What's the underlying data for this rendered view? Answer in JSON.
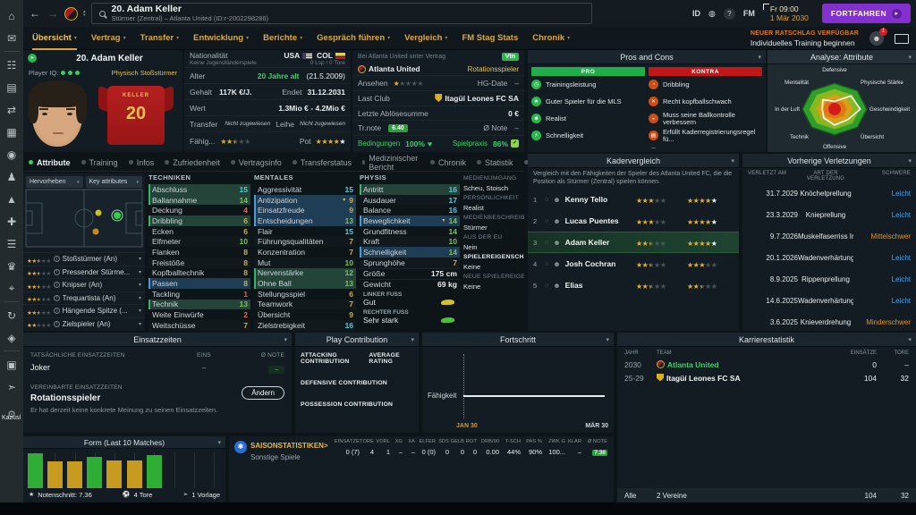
{
  "header": {
    "title": "20. Adam Keller",
    "subtitle": "Stürmer (Zentral) – Atlanta United (ID:r-2002298286)",
    "id_label": "ID",
    "fm_label": "FM",
    "time": "Fr 09:00",
    "date": "1 Mär 2030",
    "continue_label": "FORTFAHREN",
    "advice_title": "NEUER RATSCHLAG VERFÜGBAR",
    "advice_action": "Individuelles Training beginnen",
    "notification_count": "1"
  },
  "nav_tabs": [
    {
      "label": "Übersicht",
      "caret": true,
      "active": true
    },
    {
      "label": "Vertrag",
      "caret": true
    },
    {
      "label": "Transfer",
      "caret": true
    },
    {
      "label": "Entwicklung",
      "caret": true
    },
    {
      "label": "Berichte",
      "caret": true
    },
    {
      "label": "Gespräch führen",
      "caret": true
    },
    {
      "label": "Vergleich",
      "caret": true
    },
    {
      "label": "FM Stag Stats",
      "caret": false
    },
    {
      "label": "Chronik",
      "caret": true
    }
  ],
  "sidebar": {
    "icons": [
      {
        "name": "home",
        "glyph": "⌂"
      },
      {
        "name": "inbox",
        "glyph": "✉"
      },
      {
        "name": "squad-hub",
        "glyph": "☷"
      },
      {
        "name": "tactics",
        "glyph": "▤"
      },
      {
        "name": "transfers",
        "glyph": "⇄"
      },
      {
        "name": "squad",
        "glyph": "▦"
      },
      {
        "name": "club-info",
        "glyph": "◉"
      },
      {
        "name": "staff",
        "glyph": "♟"
      },
      {
        "name": "training",
        "glyph": "▲"
      },
      {
        "name": "medical-centre",
        "glyph": "✚"
      },
      {
        "name": "schedule",
        "glyph": "☰"
      },
      {
        "name": "competitions",
        "glyph": "♛"
      },
      {
        "name": "scouting",
        "glyph": "⌖"
      },
      {
        "name": "recruitment",
        "glyph": "↻"
      },
      {
        "name": "club-vision",
        "glyph": "◈"
      },
      {
        "name": "finances",
        "glyph": "▣"
      },
      {
        "name": "dynamics",
        "glyph": "➣"
      }
    ],
    "gear_glyph": "⚙",
    "footer_label": "Kazusl"
  },
  "player_card": {
    "name": "20. Adam Keller",
    "iq_label": "Player IQ:",
    "iq_dots": 3,
    "role": "Physisch Stoßstürmer",
    "shirt_name": "KELLER",
    "shirt_number": "20"
  },
  "info_personal": {
    "nationality_label": "Nationalität",
    "nationality_sub": "Keine Jugendländerspiele",
    "nat1": "USA",
    "nat2": "COL",
    "caps": "0 Lsp / 0 Tore",
    "age_label": "Alter",
    "age_value": "20 Jahre alt",
    "birthdate": "(21.5.2009)",
    "wage_label": "Gehalt",
    "wage": "117K €/J.",
    "ends_label": "Endet",
    "ends": "31.12.2031",
    "value_label": "Wert",
    "value": "1.3Mio € - 4.2Mio €",
    "transfer_label": "Transfer",
    "transfer_status": "Nicht zugewiesen",
    "loan_label": "Leihe",
    "loan_status": "Nicht zugewiesen",
    "ability_label": "Fähig...",
    "ability_stars": 2.5,
    "pot_label": "Pot",
    "pot_stars_gold": 4,
    "pot_stars_white": 1
  },
  "info_club": {
    "contract_header": "Bei Atlanta United unter Vertrag",
    "contract_badge": "Vtn",
    "club": "Atlanta United",
    "squad_status": "Rotationsspieler",
    "reputation_label": "Ansehen",
    "reputation_stars": 1,
    "hg_label": "HG-Date",
    "hg_value": "–",
    "lastclub_label": "Last Club",
    "lastclub": "Itagüí Leones FC SA",
    "fee_label": "Letzte Ablösesumme",
    "fee": "0 €",
    "trrating_label": "Tr.note",
    "trrating": "6.40",
    "avgrating_label": "Ø Note",
    "avgrating": "–",
    "condition_label": "Bedingungen",
    "condition": "100%",
    "sharpness_label": "Spielpraxis",
    "sharpness": "86%"
  },
  "pros_cons": {
    "title": "Pros and Cons",
    "pro_header": "PRO",
    "con_header": "KONTRA",
    "pros": [
      "Trainingsleistung",
      "Guter Spieler für die MLS",
      "Realist",
      "Schnelligkeit"
    ],
    "cons": [
      "Dribbling",
      "Recht kopfballschwach",
      "Muss seine Ballkontrolle verbessern",
      "Erfüllt Kaderregistrierungsregel fü...",
      "Erfüllt"
    ]
  },
  "radar": {
    "title": "Analyse: Attribute",
    "axes": [
      "Defensive",
      "Physische Stärke",
      "Geschwindigkeit",
      "Übersicht",
      "Offensive",
      "Technik",
      "In der Luft",
      "Mentalität"
    ],
    "values": [
      0.3,
      0.72,
      0.8,
      0.58,
      0.62,
      0.48,
      0.38,
      0.52
    ],
    "ring_colors": [
      "#2f9e2b",
      "#86b821",
      "#d8a018",
      "#df7714"
    ],
    "center_color": "#d41b1b"
  },
  "subtabs": [
    {
      "label": "Attribute",
      "active": true
    },
    {
      "label": "Training"
    },
    {
      "label": "Infos"
    },
    {
      "label": "Zufriedenheit"
    },
    {
      "label": "Vertragsinfo"
    },
    {
      "label": "Transferstatus"
    },
    {
      "label": "Medizinischer Bericht"
    },
    {
      "label": "Chronik"
    },
    {
      "label": "Statistik"
    },
    {
      "label": "Analyse"
    }
  ],
  "highlight_controls": {
    "highlight_label": "Hervorheben",
    "key_label": "Key attributes"
  },
  "positions": [
    {
      "stars": 2.5,
      "label": "Stoßstürmer (An)"
    },
    {
      "stars": 2.5,
      "label": "Pressender Stürme..."
    },
    {
      "stars": 2.5,
      "label": "Knipser (An)"
    },
    {
      "stars": 2.5,
      "label": "Trequartista (An)"
    },
    {
      "stars": 2.5,
      "label": "Hängende Spitze (..."
    },
    {
      "stars": 2,
      "label": "Zielspieler (An)"
    }
  ],
  "attributes": {
    "technical": {
      "title": "TECHNIKEN",
      "rows": [
        {
          "n": "Abschluss",
          "v": "15",
          "c": "teal",
          "hl": "green"
        },
        {
          "n": "Ballannahme",
          "v": "14",
          "c": "green",
          "hl": "green"
        },
        {
          "n": "Deckung",
          "v": "4",
          "c": "red"
        },
        {
          "n": "Dribbling",
          "v": "6",
          "c": "yellow",
          "hl": "green"
        },
        {
          "n": "Ecken",
          "v": "6",
          "c": "yellow"
        },
        {
          "n": "Elfmeter",
          "v": "10",
          "c": "green"
        },
        {
          "n": "Flanken",
          "v": "8",
          "c": "yellow"
        },
        {
          "n": "Freistöße",
          "v": "8",
          "c": "yellow"
        },
        {
          "n": "Kopfballtechnik",
          "v": "8",
          "c": "yellow"
        },
        {
          "n": "Passen",
          "v": "8",
          "c": "yellow",
          "hl": "blue"
        },
        {
          "n": "Tackling",
          "v": "1",
          "c": "red"
        },
        {
          "n": "Technik",
          "v": "13",
          "c": "green",
          "hl": "green"
        },
        {
          "n": "Weite Einwürfe",
          "v": "2",
          "c": "red"
        },
        {
          "n": "Weitschüsse",
          "v": "7",
          "c": "yellow"
        }
      ]
    },
    "mental": {
      "title": "MENTALES",
      "rows": [
        {
          "n": "Aggressivität",
          "v": "15",
          "c": "teal"
        },
        {
          "n": "Antizipation",
          "v": "9",
          "c": "yellow",
          "hl": "blue",
          "flag": true
        },
        {
          "n": "Einsatzfreude",
          "v": "9",
          "c": "yellow",
          "hl": "blue"
        },
        {
          "n": "Entscheidungen",
          "v": "13",
          "c": "green",
          "hl": "blue"
        },
        {
          "n": "Flair",
          "v": "15",
          "c": "teal"
        },
        {
          "n": "Führungsqualitäten",
          "v": "7",
          "c": "yellow"
        },
        {
          "n": "Konzentration",
          "v": "7",
          "c": "yellow"
        },
        {
          "n": "Mut",
          "v": "10",
          "c": "green"
        },
        {
          "n": "Nervenstärke",
          "v": "12",
          "c": "green",
          "hl": "green"
        },
        {
          "n": "Ohne Ball",
          "v": "13",
          "c": "green",
          "hl": "green"
        },
        {
          "n": "Stellungsspiel",
          "v": "6",
          "c": "yellow"
        },
        {
          "n": "Teamwork",
          "v": "7",
          "c": "yellow"
        },
        {
          "n": "Übersicht",
          "v": "9",
          "c": "yellow"
        },
        {
          "n": "Zielstrebigkeit",
          "v": "16",
          "c": "teal"
        }
      ]
    },
    "physical": {
      "title": "PHYSIS",
      "rows": [
        {
          "n": "Antritt",
          "v": "16",
          "c": "teal",
          "hl": "green"
        },
        {
          "n": "Ausdauer",
          "v": "17",
          "c": "teal"
        },
        {
          "n": "Balance",
          "v": "16",
          "c": "teal"
        },
        {
          "n": "Beweglichkeit",
          "v": "14",
          "c": "green",
          "hl": "blue",
          "flag": true
        },
        {
          "n": "Grundfitness",
          "v": "14",
          "c": "green"
        },
        {
          "n": "Kraft",
          "v": "10",
          "c": "green"
        },
        {
          "n": "Schnelligkeit",
          "v": "14",
          "c": "green",
          "hl": "blue"
        },
        {
          "n": "Sprunghöhe",
          "v": "7",
          "c": "yellow"
        }
      ]
    },
    "height_label": "Größe",
    "height": "175 cm",
    "weight_label": "Gewicht",
    "weight": "69 kg",
    "left_foot_label": "LINKER FUSS",
    "left_foot": "Gut",
    "right_foot_label": "RECHTER FUSS",
    "right_foot": "Sehr stark"
  },
  "profile_meta": [
    {
      "label": "MEDIENUMGANG",
      "value": "Scheu, Stoisch"
    },
    {
      "label": "PERSÖNLICHKEIT",
      "value": "Realist"
    },
    {
      "label": "MEDIENBESCHREIBUNG",
      "value": "Stürmer"
    },
    {
      "label": "AUS DER EU",
      "value": "Nein"
    },
    {
      "label": "SPIELEREIGENSCHAFTEN",
      "value": "Keine",
      "bold": true
    },
    {
      "label": "NEUE SPIELEREIGENSCH...",
      "value": "Keine"
    }
  ],
  "squad_comparison": {
    "title": "Kadervergleich",
    "description": "Vergleich mit den Fähigkeiten der Spieler des Atlanta United FC, die die Position als Stürmer (Zentral) spielen können.",
    "rows": [
      {
        "rank": "1",
        "name": "Kenny Tello",
        "ability": 3,
        "pot_gold": 4,
        "pot_white": 1
      },
      {
        "rank": "2",
        "name": "Lucas Puentes",
        "ability": 3,
        "pot_gold": 4,
        "pot_white": 1
      },
      {
        "rank": "3",
        "name": "Adam Keller",
        "ability": 2.5,
        "pot_gold": 4,
        "pot_white": 1,
        "highlight": true
      },
      {
        "rank": "4",
        "name": "Josh Cochran",
        "ability": 2.5,
        "pot_gold": 3,
        "pot_white": 0
      },
      {
        "rank": "5",
        "name": "Elias",
        "ability": 2.5,
        "pot_gold": 2.5,
        "pot_white": 0
      }
    ]
  },
  "injuries": {
    "title": "Vorherige Verletzungen",
    "headers": [
      "VERLETZT AM",
      "ART DER VERLETZUNG",
      "SCHWERE"
    ],
    "rows": [
      {
        "date": "31.7.2029",
        "type": "Knöchelprellung",
        "severity": "Leicht",
        "level": "light"
      },
      {
        "date": "23.3.2029",
        "type": "Knieprellung",
        "severity": "Leicht",
        "level": "light"
      },
      {
        "date": "9.7.2026",
        "type": "Muskelfaserriss In...",
        "severity": "Mittelschwer",
        "level": "medium"
      },
      {
        "date": "20.1.2026",
        "type": "Wadenverhärtung",
        "severity": "Leicht",
        "level": "light"
      },
      {
        "date": "8.9.2025",
        "type": "Rippenprellung",
        "severity": "Leicht",
        "level": "light"
      },
      {
        "date": "14.6.2025",
        "type": "Wadenverhärtung",
        "severity": "Leicht",
        "level": "light"
      },
      {
        "date": "3.6.2025",
        "type": "Knieverdrehung",
        "severity": "Minderschwer",
        "level": "medium"
      }
    ]
  },
  "playing_time": {
    "title": "Einsatzzeiten",
    "actual_label": "TATSÄCHLICHE EINSATZZEITEN",
    "eins_label": "EINS",
    "note_label": "Ø NOTE",
    "actual_value": "Joker",
    "eins_value": "–",
    "note_value": "–",
    "agreed_label": "VEREINBARTE EINSATZZEITEN",
    "change_label": "Ändern",
    "agreed_value": "Rotationsspieler",
    "opinion": "Er hat derzeit keine konkrete Meinung zu seinen Einsatzzeiten."
  },
  "play_contribution": {
    "title": "Play Contribution",
    "rows": [
      "ATTACKING CONTRIBUTION",
      "DEFENSIVE CONTRIBUTION",
      "POSSESSION CONTRIBUTION"
    ],
    "rating_label": "AVERAGE RATING"
  },
  "progress": {
    "title": "Fortschritt",
    "ylabel": "Fähigkeit",
    "x_start": "JAN 30",
    "x_end": "MÄR 30"
  },
  "career": {
    "title": "Karrierestatistik",
    "headers": [
      "JAHR",
      "TEAM",
      "EINSÄTZE",
      "TORE"
    ],
    "rows": [
      {
        "year": "2030",
        "team": "Atlanta United",
        "apps": "0",
        "goals": "–",
        "current": true
      },
      {
        "year": "25-29",
        "team": "Itagüí Leones FC SA",
        "apps": "104",
        "goals": "32"
      }
    ],
    "footer": {
      "all": "Alle",
      "clubs": "2 Vereine",
      "apps": "104",
      "goals": "32"
    }
  },
  "form": {
    "title": "Form (Last 10 Matches)",
    "bars": [
      {
        "v": 88,
        "c": "green"
      },
      {
        "v": 68,
        "c": "gold"
      },
      {
        "v": 68,
        "c": "gold"
      },
      {
        "v": 80,
        "c": "green"
      },
      {
        "v": 70,
        "c": "gold"
      },
      {
        "v": 70,
        "c": "gold"
      },
      {
        "v": 84,
        "c": "green"
      },
      {
        "v": 0,
        "c": "none"
      },
      {
        "v": 0,
        "c": "none"
      },
      {
        "v": 0,
        "c": "none"
      }
    ],
    "avg_label": "Notenschnitt: 7.36",
    "goals_label": "4 Tore",
    "assists_label": "1 Vorlage"
  },
  "season_stats": {
    "title": "SAISONSTATISTIKEN>",
    "subtitle": "Sonstige Spiele",
    "headers": [
      "EINSÄTZE",
      "TORE",
      "VORL",
      "XG",
      "XA",
      "ELFER",
      "SDS",
      "GELB",
      "ROT",
      "DRB/90",
      "T-SCH",
      "PAS %",
      "ZWK G",
      "KLÄR",
      "Ø NOTE"
    ],
    "values": [
      "0 (7)",
      "4",
      "1",
      "–",
      "–",
      "0 (0)",
      "0",
      "0",
      "0",
      "0.00",
      "44%",
      "90%",
      "100...",
      "–",
      "7.36"
    ]
  }
}
